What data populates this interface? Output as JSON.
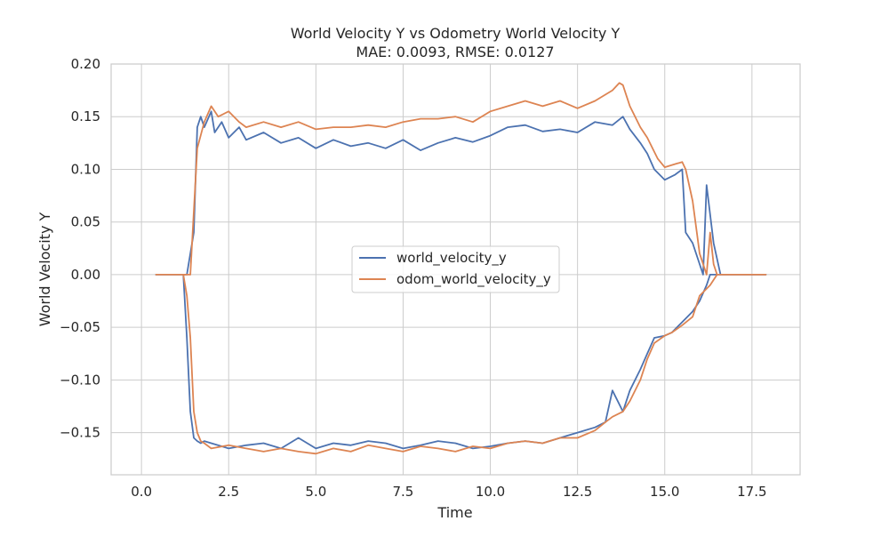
{
  "chart_data": {
    "type": "line",
    "title": "World Velocity Y vs Odometry World Velocity Y",
    "subtitle": "MAE: 0.0093, RMSE: 0.0127",
    "xlabel": "Time",
    "ylabel": "World Velocity Y",
    "xlim": [
      -0.87,
      18.88
    ],
    "ylim": [
      -0.19,
      0.2
    ],
    "grid": true,
    "legend_position": "center",
    "xticks": [
      0.0,
      2.5,
      5.0,
      7.5,
      10.0,
      12.5,
      15.0,
      17.5
    ],
    "xtick_labels": [
      "0.0",
      "2.5",
      "5.0",
      "7.5",
      "10.0",
      "12.5",
      "15.0",
      "17.5"
    ],
    "yticks": [
      0.2,
      0.15,
      0.1,
      0.05,
      0.0,
      -0.05,
      -0.1,
      -0.15
    ],
    "ytick_labels": [
      "0.20",
      "0.15",
      "0.10",
      "0.05",
      "0.00",
      "−0.05",
      "−0.10",
      "−0.15"
    ],
    "series": [
      {
        "name": "world_velocity_y",
        "color": "#4c72b0",
        "x": [
          0.4,
          1.2,
          1.3,
          1.5,
          1.6,
          1.7,
          1.8,
          2.0,
          2.1,
          2.3,
          2.5,
          2.8,
          3.0,
          3.5,
          4.0,
          4.5,
          5.0,
          5.5,
          6.0,
          6.5,
          7.0,
          7.5,
          8.0,
          8.5,
          9.0,
          9.5,
          10.0,
          10.5,
          11.0,
          11.5,
          12.0,
          12.5,
          13.0,
          13.5,
          13.8,
          14.0,
          14.3,
          14.5,
          14.7,
          15.0,
          15.3,
          15.5,
          15.6,
          15.8,
          16.0,
          16.1,
          16.2,
          16.4,
          16.6,
          17.0,
          17.9,
          17.9,
          17.0,
          16.3,
          16.2,
          16.0,
          15.8,
          15.5,
          15.2,
          15.0,
          14.7,
          14.5,
          14.3,
          14.0,
          13.8,
          13.5,
          13.3,
          13.0,
          12.5,
          12.0,
          11.5,
          11.0,
          10.5,
          10.0,
          9.5,
          9.0,
          8.5,
          8.0,
          7.5,
          7.0,
          6.5,
          6.0,
          5.5,
          5.0,
          4.5,
          4.0,
          3.5,
          3.0,
          2.5,
          2.0,
          1.8,
          1.7,
          1.6,
          1.5,
          1.4,
          1.3,
          1.2,
          0.4
        ],
        "y": [
          0.0,
          0.0,
          0.0,
          0.04,
          0.14,
          0.15,
          0.14,
          0.155,
          0.135,
          0.145,
          0.13,
          0.14,
          0.128,
          0.135,
          0.125,
          0.13,
          0.12,
          0.128,
          0.122,
          0.125,
          0.12,
          0.128,
          0.118,
          0.125,
          0.13,
          0.126,
          0.132,
          0.14,
          0.142,
          0.136,
          0.138,
          0.135,
          0.145,
          0.142,
          0.15,
          0.138,
          0.125,
          0.115,
          0.1,
          0.09,
          0.095,
          0.1,
          0.04,
          0.03,
          0.01,
          0.0,
          0.085,
          0.03,
          0.0,
          0.0,
          0.0,
          0.0,
          0.0,
          0.0,
          -0.01,
          -0.025,
          -0.035,
          -0.045,
          -0.055,
          -0.058,
          -0.06,
          -0.075,
          -0.09,
          -0.11,
          -0.13,
          -0.11,
          -0.14,
          -0.145,
          -0.15,
          -0.155,
          -0.16,
          -0.158,
          -0.16,
          -0.163,
          -0.165,
          -0.16,
          -0.158,
          -0.162,
          -0.165,
          -0.16,
          -0.158,
          -0.162,
          -0.16,
          -0.165,
          -0.155,
          -0.165,
          -0.16,
          -0.162,
          -0.165,
          -0.16,
          -0.158,
          -0.16,
          -0.158,
          -0.155,
          -0.13,
          -0.06,
          0.0,
          0.0
        ]
      },
      {
        "name": "odom_world_velocity_y",
        "color": "#dd8452",
        "x": [
          0.4,
          1.2,
          1.3,
          1.4,
          1.5,
          1.6,
          1.8,
          2.0,
          2.2,
          2.5,
          2.8,
          3.0,
          3.5,
          4.0,
          4.5,
          5.0,
          5.5,
          6.0,
          6.5,
          7.0,
          7.5,
          8.0,
          8.5,
          9.0,
          9.5,
          10.0,
          10.5,
          11.0,
          11.5,
          12.0,
          12.5,
          13.0,
          13.5,
          13.7,
          13.8,
          14.0,
          14.3,
          14.5,
          14.8,
          15.0,
          15.3,
          15.5,
          15.6,
          15.8,
          16.0,
          16.2,
          16.3,
          16.4,
          16.5,
          17.0,
          17.9,
          17.9,
          17.0,
          16.5,
          16.3,
          16.0,
          15.8,
          15.5,
          15.2,
          15.0,
          14.7,
          14.5,
          14.3,
          14.0,
          13.8,
          13.5,
          13.3,
          13.0,
          12.5,
          12.0,
          11.5,
          11.0,
          10.5,
          10.0,
          9.5,
          9.0,
          8.5,
          8.0,
          7.5,
          7.0,
          6.5,
          6.0,
          5.5,
          5.0,
          4.5,
          4.0,
          3.5,
          3.0,
          2.5,
          2.0,
          1.8,
          1.7,
          1.6,
          1.5,
          1.4,
          1.3,
          1.2,
          0.4
        ],
        "y": [
          0.0,
          0.0,
          0.0,
          0.0,
          0.06,
          0.12,
          0.145,
          0.16,
          0.15,
          0.155,
          0.145,
          0.14,
          0.145,
          0.14,
          0.145,
          0.138,
          0.14,
          0.14,
          0.142,
          0.14,
          0.145,
          0.148,
          0.148,
          0.15,
          0.145,
          0.155,
          0.16,
          0.165,
          0.16,
          0.165,
          0.158,
          0.165,
          0.175,
          0.182,
          0.18,
          0.16,
          0.14,
          0.13,
          0.11,
          0.102,
          0.105,
          0.107,
          0.1,
          0.07,
          0.02,
          0.0,
          0.04,
          0.01,
          0.0,
          0.0,
          0.0,
          0.0,
          0.0,
          0.0,
          -0.01,
          -0.02,
          -0.04,
          -0.048,
          -0.055,
          -0.058,
          -0.065,
          -0.08,
          -0.1,
          -0.12,
          -0.13,
          -0.135,
          -0.14,
          -0.148,
          -0.155,
          -0.155,
          -0.16,
          -0.158,
          -0.16,
          -0.165,
          -0.163,
          -0.168,
          -0.165,
          -0.163,
          -0.168,
          -0.165,
          -0.162,
          -0.168,
          -0.165,
          -0.17,
          -0.168,
          -0.165,
          -0.168,
          -0.165,
          -0.162,
          -0.165,
          -0.16,
          -0.158,
          -0.15,
          -0.13,
          -0.06,
          -0.02,
          0.0,
          0.0
        ]
      }
    ]
  }
}
